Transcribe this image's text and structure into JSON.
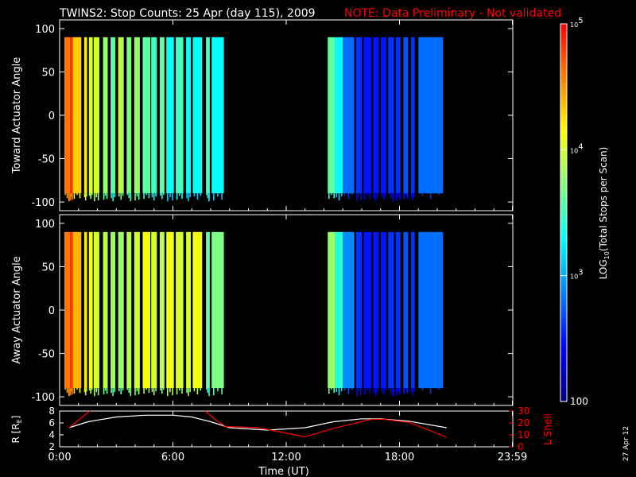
{
  "title": {
    "main": "TWINS2: Stop Counts: 25 Apr (day 115), 2009",
    "note": "NOTE: Data Preliminary - Not validated",
    "note_color": "#ff0000"
  },
  "footer_date": "27 Apr 12",
  "chart_data": [
    {
      "type": "heatmap",
      "name": "toward",
      "ylabel": "Toward Actuator Angle",
      "ylim": [
        -110,
        110
      ],
      "yticks": [
        100,
        50,
        0,
        -50,
        -100
      ],
      "xlim": [
        0,
        24
      ],
      "x_unit": "hours UT",
      "angle_range": [
        -90,
        90
      ],
      "z_scale": "log",
      "columns": [
        {
          "t0": 0.25,
          "t1": 0.55,
          "log10": 4.6
        },
        {
          "t0": 0.55,
          "t1": 0.7,
          "log10": 4.8
        },
        {
          "t0": 0.7,
          "t1": 1.15,
          "log10": 4.3
        },
        {
          "t0": 1.3,
          "t1": 1.45,
          "log10": 4.2
        },
        {
          "t0": 1.55,
          "t1": 1.75,
          "log10": 4.0
        },
        {
          "t0": 1.8,
          "t1": 2.1,
          "log10": 4.0
        },
        {
          "t0": 2.3,
          "t1": 2.55,
          "log10": 3.8
        },
        {
          "t0": 2.7,
          "t1": 2.95,
          "log10": 3.6
        },
        {
          "t0": 3.1,
          "t1": 3.4,
          "log10": 3.9
        },
        {
          "t0": 3.55,
          "t1": 3.8,
          "log10": 3.7
        },
        {
          "t0": 3.95,
          "t1": 4.25,
          "log10": 3.8
        },
        {
          "t0": 4.4,
          "t1": 4.8,
          "log10": 3.6
        },
        {
          "t0": 4.85,
          "t1": 5.15,
          "log10": 3.5
        },
        {
          "t0": 5.3,
          "t1": 5.55,
          "log10": 3.6
        },
        {
          "t0": 5.65,
          "t1": 6.05,
          "log10": 3.3
        },
        {
          "t0": 6.15,
          "t1": 6.55,
          "log10": 3.5
        },
        {
          "t0": 6.7,
          "t1": 6.95,
          "log10": 3.3
        },
        {
          "t0": 7.05,
          "t1": 7.55,
          "log10": 3.3
        },
        {
          "t0": 7.75,
          "t1": 7.95,
          "log10": 3.5
        },
        {
          "t0": 8.05,
          "t1": 8.7,
          "log10": 3.3
        },
        {
          "t0": 14.2,
          "t1": 14.6,
          "log10": 3.6
        },
        {
          "t0": 14.6,
          "t1": 15.0,
          "log10": 3.3
        },
        {
          "t0": 15.0,
          "t1": 15.6,
          "log10": 2.8
        },
        {
          "t0": 15.7,
          "t1": 16.0,
          "log10": 2.6
        },
        {
          "t0": 16.1,
          "t1": 16.5,
          "log10": 2.5
        },
        {
          "t0": 16.6,
          "t1": 16.9,
          "log10": 2.5
        },
        {
          "t0": 17.0,
          "t1": 17.3,
          "log10": 2.5
        },
        {
          "t0": 17.4,
          "t1": 17.7,
          "log10": 2.6
        },
        {
          "t0": 17.8,
          "t1": 18.05,
          "log10": 2.6
        },
        {
          "t0": 18.2,
          "t1": 18.45,
          "log10": 2.7
        },
        {
          "t0": 18.6,
          "t1": 18.8,
          "log10": 2.6
        },
        {
          "t0": 19.0,
          "t1": 20.3,
          "log10": 2.8
        }
      ]
    },
    {
      "type": "heatmap",
      "name": "away",
      "ylabel": "Away Actuator Angle",
      "ylim": [
        -110,
        110
      ],
      "yticks": [
        100,
        50,
        0,
        -50,
        -100
      ],
      "xlim": [
        0,
        24
      ],
      "x_unit": "hours UT",
      "angle_range": [
        -90,
        90
      ],
      "z_scale": "log",
      "columns": [
        {
          "t0": 0.25,
          "t1": 0.55,
          "log10": 4.6
        },
        {
          "t0": 0.55,
          "t1": 0.7,
          "log10": 4.8
        },
        {
          "t0": 0.7,
          "t1": 1.15,
          "log10": 4.4
        },
        {
          "t0": 1.3,
          "t1": 1.45,
          "log10": 4.2
        },
        {
          "t0": 1.55,
          "t1": 1.75,
          "log10": 4.1
        },
        {
          "t0": 1.8,
          "t1": 2.1,
          "log10": 4.0
        },
        {
          "t0": 2.3,
          "t1": 2.55,
          "log10": 3.9
        },
        {
          "t0": 2.7,
          "t1": 2.95,
          "log10": 3.8
        },
        {
          "t0": 3.1,
          "t1": 3.4,
          "log10": 3.8
        },
        {
          "t0": 3.55,
          "t1": 3.8,
          "log10": 3.9
        },
        {
          "t0": 3.95,
          "t1": 4.25,
          "log10": 4.0
        },
        {
          "t0": 4.4,
          "t1": 4.8,
          "log10": 4.1
        },
        {
          "t0": 4.85,
          "t1": 5.15,
          "log10": 4.0
        },
        {
          "t0": 5.3,
          "t1": 5.55,
          "log10": 3.9
        },
        {
          "t0": 5.65,
          "t1": 6.05,
          "log10": 4.1
        },
        {
          "t0": 6.15,
          "t1": 6.55,
          "log10": 4.0
        },
        {
          "t0": 6.7,
          "t1": 6.95,
          "log10": 4.0
        },
        {
          "t0": 7.05,
          "t1": 7.55,
          "log10": 4.1
        },
        {
          "t0": 7.75,
          "t1": 7.95,
          "log10": 3.6
        },
        {
          "t0": 8.05,
          "t1": 8.7,
          "log10": 3.7
        },
        {
          "t0": 14.2,
          "t1": 14.6,
          "log10": 3.8
        },
        {
          "t0": 14.6,
          "t1": 15.0,
          "log10": 3.4
        },
        {
          "t0": 15.0,
          "t1": 15.6,
          "log10": 2.9
        },
        {
          "t0": 15.7,
          "t1": 16.0,
          "log10": 2.6
        },
        {
          "t0": 16.1,
          "t1": 16.5,
          "log10": 2.5
        },
        {
          "t0": 16.6,
          "t1": 16.9,
          "log10": 2.5
        },
        {
          "t0": 17.0,
          "t1": 17.3,
          "log10": 2.5
        },
        {
          "t0": 17.4,
          "t1": 17.7,
          "log10": 2.6
        },
        {
          "t0": 17.8,
          "t1": 18.05,
          "log10": 2.6
        },
        {
          "t0": 18.2,
          "t1": 18.45,
          "log10": 2.7
        },
        {
          "t0": 18.6,
          "t1": 18.8,
          "log10": 2.6
        },
        {
          "t0": 19.0,
          "t1": 20.3,
          "log10": 2.8
        }
      ]
    },
    {
      "type": "line",
      "name": "orbit",
      "xlabel": "Time (UT)",
      "xlim": [
        0,
        24
      ],
      "xticks": [
        "0:00",
        "6:00",
        "12:00",
        "18:00",
        "23:59"
      ],
      "xtick_values": [
        0,
        6,
        12,
        18,
        23.98
      ],
      "left_axis": {
        "label": "R [R",
        "label_sub": "E",
        "label_end": "]",
        "ylim": [
          2,
          8
        ],
        "ticks": [
          8,
          6,
          4,
          2
        ],
        "color": "#ffffff"
      },
      "right_axis": {
        "label": "L Shell",
        "ylim": [
          0,
          30
        ],
        "ticks": [
          30,
          20,
          10,
          0
        ],
        "color": "#ff0000"
      },
      "series": [
        {
          "axis": "left",
          "color": "#ffffff",
          "x": [
            0.5,
            1.5,
            3.0,
            4.5,
            6.0,
            7.0,
            8.0,
            9.0,
            11.0,
            13.0,
            14.5,
            16.0,
            17.0,
            18.5,
            20.5
          ],
          "y": [
            5.2,
            6.2,
            7.0,
            7.3,
            7.3,
            7.0,
            6.2,
            5.2,
            4.8,
            5.2,
            6.2,
            6.7,
            6.7,
            6.3,
            5.2
          ]
        },
        {
          "axis": "right",
          "color": "#ff0000",
          "segments": [
            {
              "x": [
                0.5,
                1.6
              ],
              "y": [
                16,
                30
              ]
            },
            {
              "x": [
                7.7,
                8.3,
                8.8,
                10.5,
                13.0,
                14.5,
                16.5,
                17.2,
                18.5,
                20.5
              ],
              "y": [
                30,
                22,
                17,
                16,
                8.5,
                15.5,
                23,
                23,
                20.5,
                8
              ]
            }
          ]
        }
      ]
    }
  ],
  "colorbar": {
    "label": "LOG",
    "label_sub": "10",
    "label_rest": "(Total Stops per Scan)",
    "range_log10": [
      2,
      5
    ],
    "ticks": [
      {
        "log10": 5,
        "base": "10",
        "exp": "5"
      },
      {
        "log10": 4,
        "base": "10",
        "exp": "4"
      },
      {
        "log10": 3,
        "base": "10",
        "exp": "3"
      },
      {
        "log10": 2,
        "text": "100"
      }
    ],
    "colors": [
      "#000080",
      "#0000ff",
      "#0080ff",
      "#00ffff",
      "#80ff80",
      "#ffff00",
      "#ff8000",
      "#ff0000"
    ]
  }
}
